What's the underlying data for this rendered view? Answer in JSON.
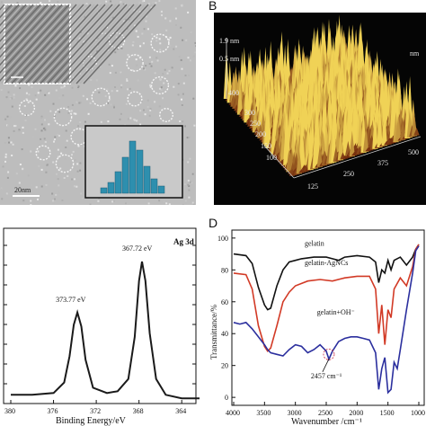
{
  "panels": {
    "a": {
      "label": "",
      "scale_bar": "20nm"
    },
    "b": {
      "label": "B"
    },
    "c": {
      "label": ""
    },
    "d": {
      "label": "D"
    }
  },
  "afm": {
    "z_ticks": [
      "1.9 nm",
      "0.5 nm"
    ],
    "x_ticks": [
      "125",
      "250",
      "375",
      "500"
    ],
    "y_ticks": [
      "400",
      "300",
      "250",
      "200",
      "150",
      "100"
    ],
    "corner_tick": "nm"
  },
  "colors": {
    "ftir_gelatin": "#111111",
    "ftir_agncs": "#d23a26",
    "ftir_oh": "#2b2f9e",
    "afm_bg": "#050505",
    "afm_peak": "#f0d256",
    "afm_base": "#6b2008",
    "histogram": "#2e8fae"
  },
  "chart_data": [
    {
      "type": "line",
      "panel": "C",
      "title": "Ag 3d",
      "xlabel": "Binding Energy/eV",
      "ylabel": "",
      "x_ticks": [
        "380",
        "376",
        "372",
        "368",
        "364"
      ],
      "xlim": [
        380,
        362
      ],
      "reversed_x": true,
      "annotations": [
        {
          "text": "373.77 eV",
          "x": 373.77
        },
        {
          "text": "367.72 eV",
          "x": 367.72
        }
      ],
      "series": [
        {
          "x": [
            380,
            378,
            376,
            375,
            374.5,
            374.1,
            373.77,
            373.4,
            373,
            372.3,
            371,
            370,
            369,
            368.4,
            368,
            367.72,
            367.4,
            367,
            366.4,
            365.5,
            364,
            362
          ],
          "y": [
            0.05,
            0.05,
            0.06,
            0.12,
            0.27,
            0.45,
            0.52,
            0.44,
            0.25,
            0.09,
            0.06,
            0.07,
            0.14,
            0.38,
            0.7,
            0.81,
            0.7,
            0.4,
            0.14,
            0.05,
            0.03,
            0.03
          ]
        }
      ]
    },
    {
      "type": "line",
      "panel": "D",
      "xlabel": "Wavenumber /cm⁻¹",
      "ylabel": "Transmittance/%",
      "x_ticks": [
        "4000",
        "3500",
        "3000",
        "2500",
        "2000",
        "1500",
        "1000"
      ],
      "y_ticks": [
        "0",
        "20",
        "40",
        "60",
        "80",
        "100"
      ],
      "xlim": [
        4000,
        1000
      ],
      "ylim": [
        -5,
        105
      ],
      "annotations": [
        {
          "text": "2457 cm⁻¹",
          "x": 2457
        }
      ],
      "series": [
        {
          "name": "gelatin",
          "x": [
            4000,
            3800,
            3700,
            3600,
            3500,
            3450,
            3400,
            3300,
            3200,
            3100,
            3000,
            2900,
            2700,
            2500,
            2400,
            2300,
            2200,
            2000,
            1800,
            1700,
            1650,
            1600,
            1550,
            1500,
            1450,
            1400,
            1300,
            1200,
            1100,
            1050,
            1000
          ],
          "y": [
            90,
            89,
            84,
            69,
            58,
            55,
            56,
            70,
            80,
            85,
            86,
            87,
            88,
            88,
            87,
            86,
            88,
            89,
            88,
            85,
            72,
            80,
            78,
            86,
            80,
            86,
            88,
            83,
            88,
            93,
            96
          ]
        },
        {
          "name": "gelatin-AgNCs",
          "x": [
            4000,
            3800,
            3700,
            3600,
            3500,
            3450,
            3400,
            3300,
            3200,
            3100,
            3000,
            2800,
            2600,
            2400,
            2200,
            2000,
            1800,
            1700,
            1650,
            1600,
            1550,
            1500,
            1450,
            1400,
            1300,
            1200,
            1100,
            1050,
            1000
          ],
          "y": [
            78,
            77,
            68,
            45,
            32,
            29,
            31,
            45,
            60,
            66,
            70,
            73,
            74,
            73,
            75,
            76,
            76,
            68,
            40,
            58,
            33,
            55,
            50,
            68,
            75,
            70,
            82,
            93,
            96
          ]
        },
        {
          "name": "gelatin+OH⁻",
          "x": [
            4000,
            3900,
            3800,
            3700,
            3600,
            3500,
            3450,
            3400,
            3300,
            3200,
            3100,
            3000,
            2900,
            2800,
            2700,
            2600,
            2500,
            2457,
            2400,
            2300,
            2200,
            2100,
            2000,
            1900,
            1800,
            1700,
            1650,
            1600,
            1550,
            1500,
            1450,
            1400,
            1350,
            1300,
            1200,
            1100,
            1050,
            1000
          ],
          "y": [
            47,
            46,
            47,
            43,
            38,
            33,
            30,
            28,
            27,
            26,
            30,
            33,
            32,
            28,
            30,
            33,
            29,
            24,
            29,
            35,
            37,
            38,
            38,
            37,
            36,
            28,
            5,
            18,
            25,
            3,
            5,
            22,
            18,
            30,
            55,
            78,
            92,
            95
          ]
        }
      ]
    }
  ]
}
